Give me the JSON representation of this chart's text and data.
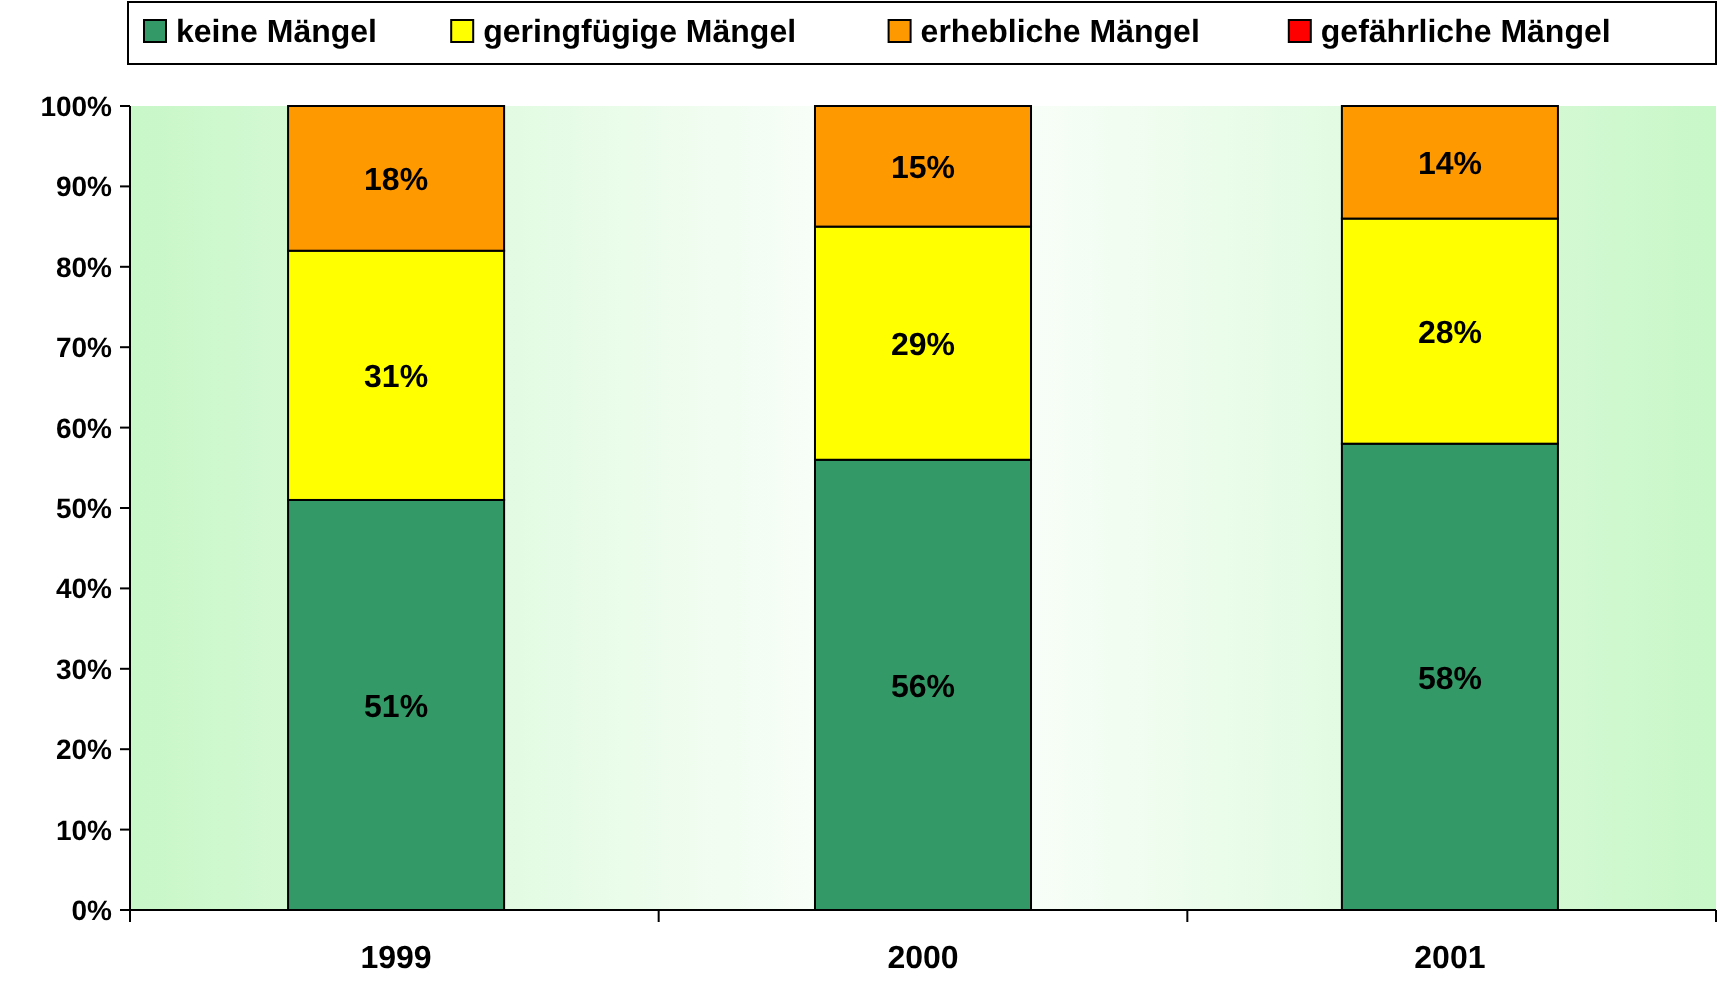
{
  "chart_data": {
    "type": "bar",
    "stacked": true,
    "categories": [
      "1999",
      "2000",
      "2001"
    ],
    "series": [
      {
        "name": "keine Mängel",
        "color": "#339966",
        "values": [
          51,
          56,
          58
        ],
        "value_labels": [
          "51%",
          "56%",
          "58%"
        ]
      },
      {
        "name": "geringfügige Mängel",
        "color": "#ffff00",
        "values": [
          31,
          29,
          28
        ],
        "value_labels": [
          "31%",
          "29%",
          "28%"
        ]
      },
      {
        "name": "erhebliche Mängel",
        "color": "#ff9900",
        "values": [
          18,
          15,
          14
        ],
        "value_labels": [
          "18%",
          "15%",
          "14%"
        ]
      },
      {
        "name": "gefährliche Mängel",
        "color": "#ff0000",
        "values": [
          0,
          0,
          0
        ],
        "value_labels": [
          null,
          null,
          null
        ]
      }
    ],
    "ylim": [
      0,
      100
    ],
    "yticks": [
      {
        "value": 0,
        "label": "0%"
      },
      {
        "value": 10,
        "label": "10%"
      },
      {
        "value": 20,
        "label": "20%"
      },
      {
        "value": 30,
        "label": "30%"
      },
      {
        "value": 40,
        "label": "40%"
      },
      {
        "value": 50,
        "label": "50%"
      },
      {
        "value": 60,
        "label": "60%"
      },
      {
        "value": 70,
        "label": "70%"
      },
      {
        "value": 80,
        "label": "80%"
      },
      {
        "value": 90,
        "label": "90%"
      },
      {
        "value": 100,
        "label": "100%"
      }
    ],
    "grid": false,
    "legend": "top"
  }
}
